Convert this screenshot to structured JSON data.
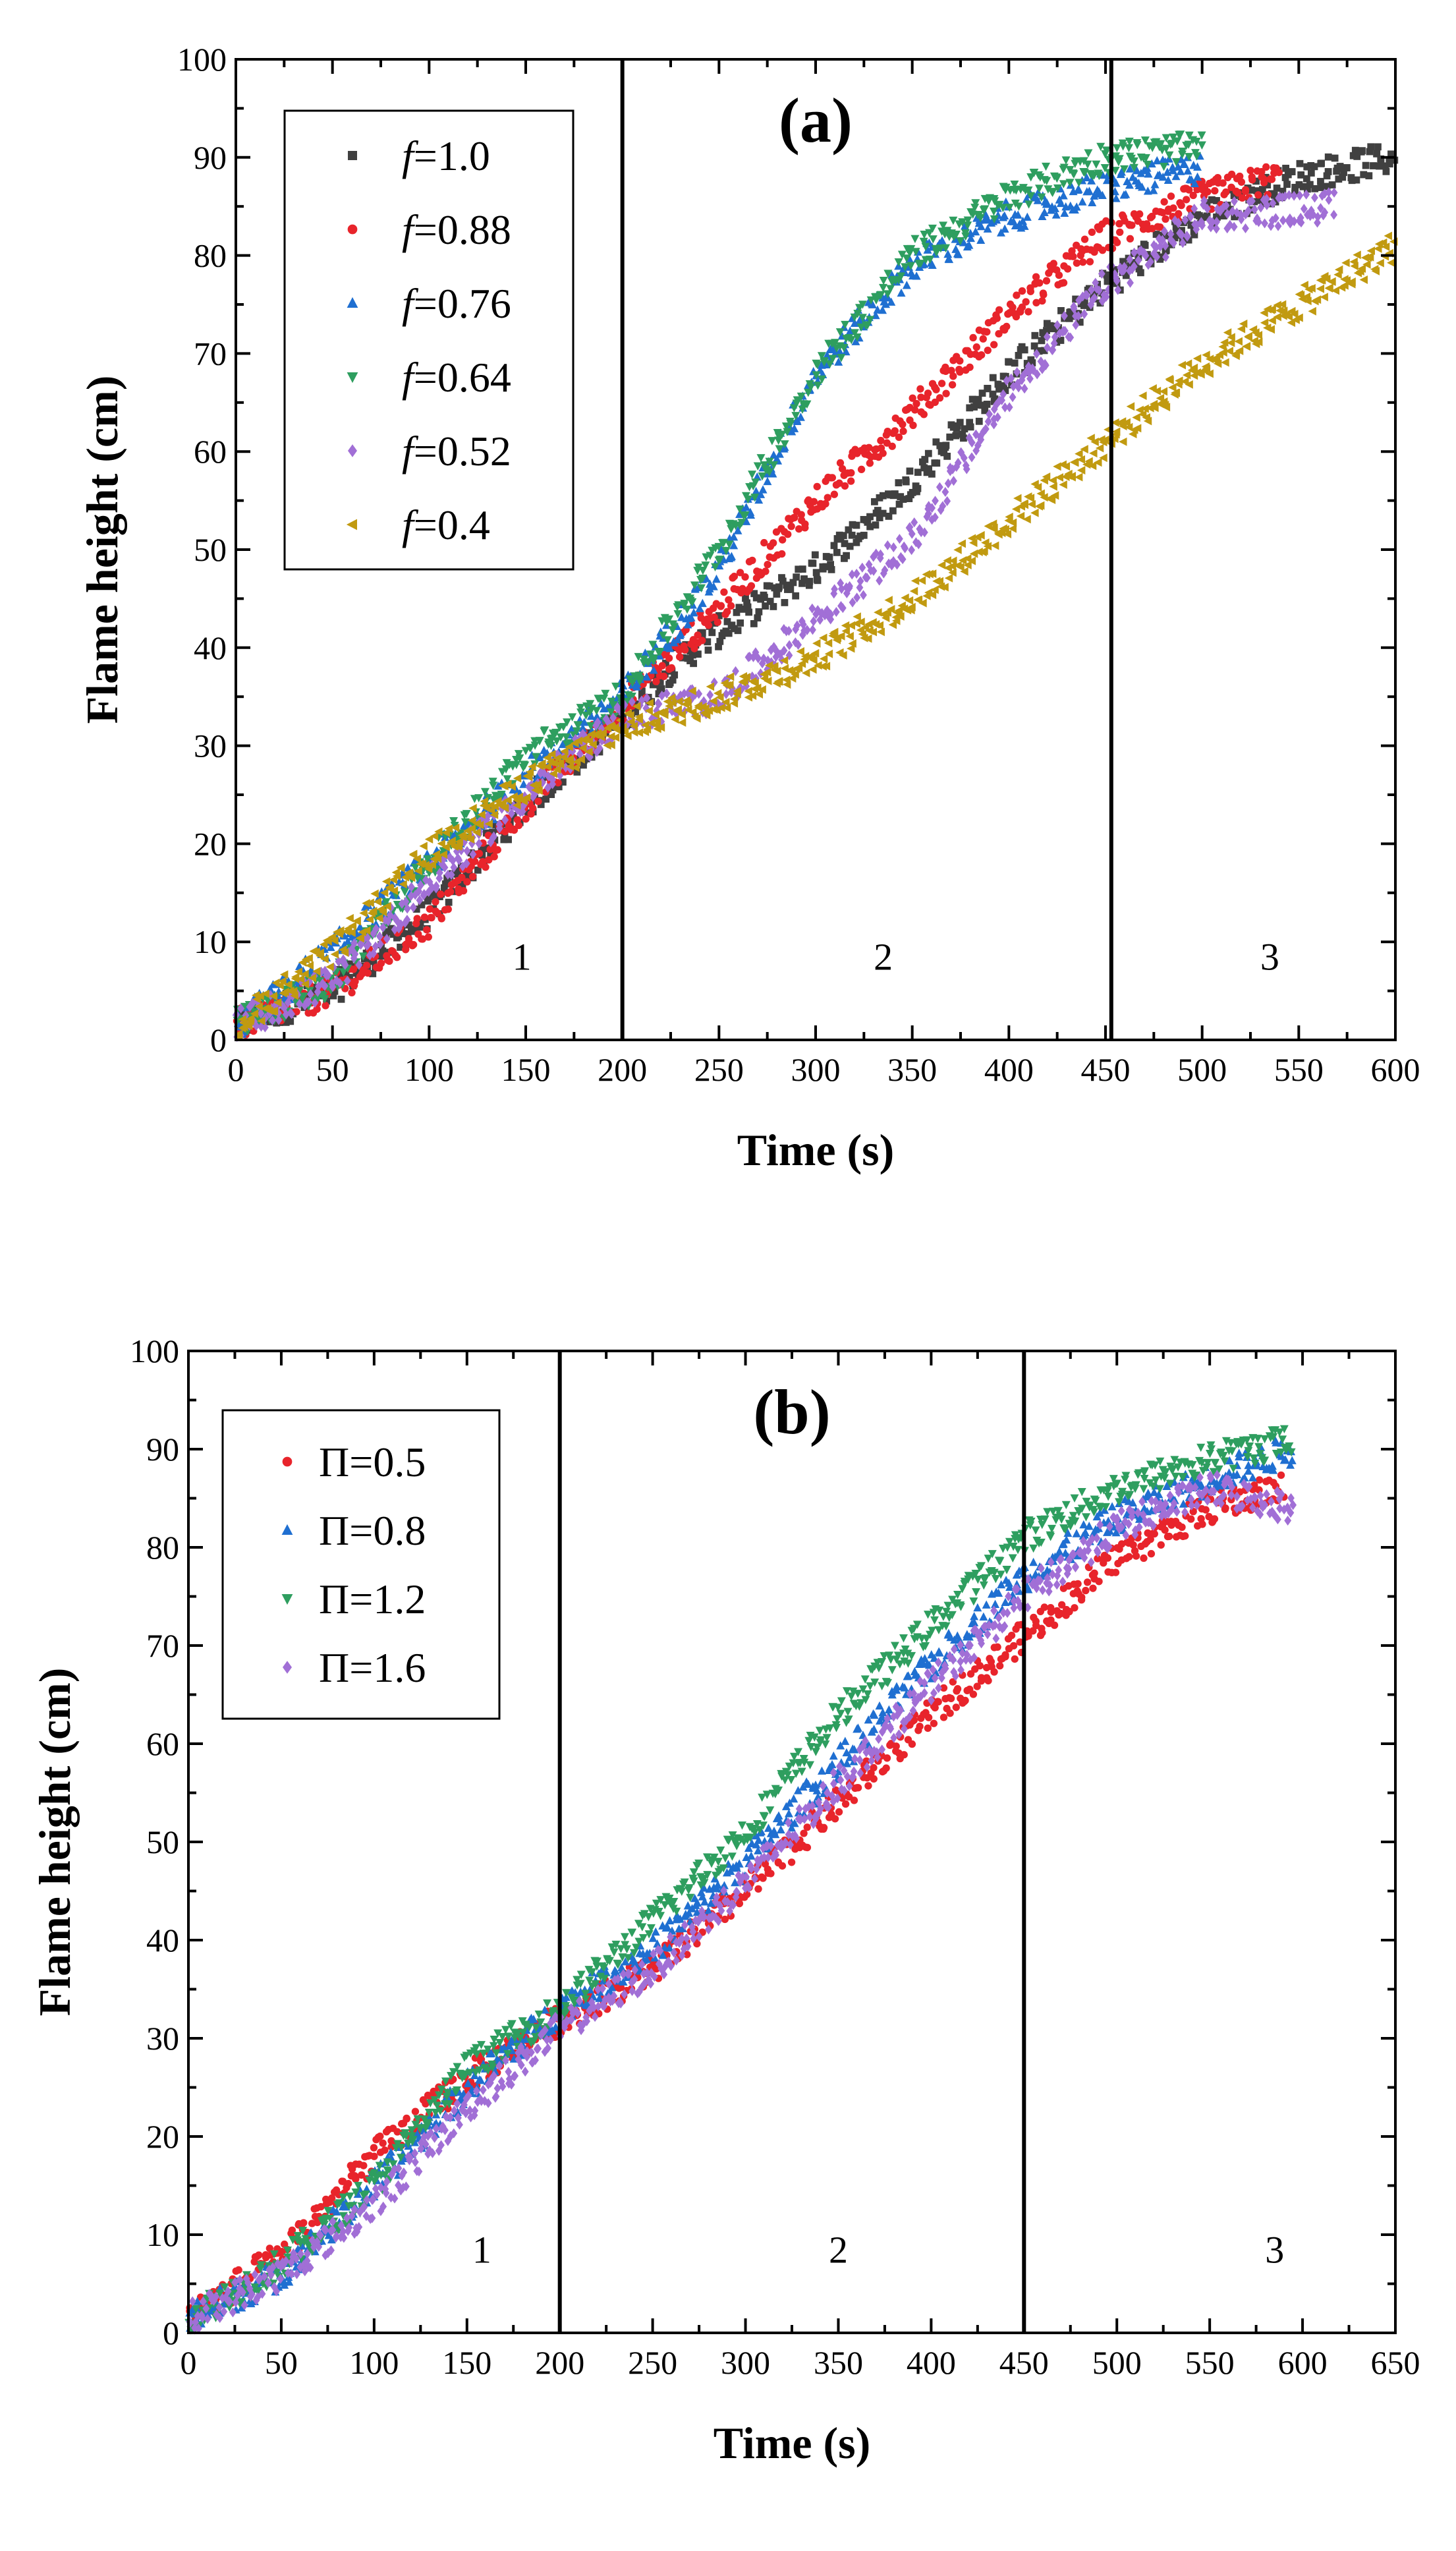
{
  "chart_data": [
    {
      "type": "scatter",
      "panel_label": "(a)",
      "xlabel": "Time (s)",
      "ylabel": "Flame height (cm)",
      "xlim": [
        0,
        600
      ],
      "ylim": [
        0,
        100
      ],
      "xticks": [
        0,
        50,
        100,
        150,
        200,
        250,
        300,
        350,
        400,
        450,
        500,
        550,
        600
      ],
      "yticks": [
        0,
        10,
        20,
        30,
        40,
        50,
        60,
        70,
        80,
        90,
        100
      ],
      "dividers": [
        200,
        453
      ],
      "regions": [
        {
          "label": "1",
          "x": 148,
          "y": 8.5
        },
        {
          "label": "2",
          "x": 335,
          "y": 8.5
        },
        {
          "label": "3",
          "x": 535,
          "y": 8.5
        }
      ],
      "legend_position": "top-left",
      "series": [
        {
          "symbol": "f",
          "value": "=1.0",
          "color": "#404040",
          "marker": "square",
          "x": [
            0,
            50,
            100,
            150,
            200,
            230,
            260,
            300,
            350,
            400,
            450,
            500,
            550,
            600
          ],
          "y": [
            1.5,
            5,
            13,
            24,
            33,
            39,
            43,
            48,
            57,
            68,
            77,
            84,
            88,
            90
          ]
        },
        {
          "symbol": "f",
          "value": "=0.88",
          "color": "#e8242b",
          "marker": "circle",
          "x": [
            0,
            50,
            100,
            150,
            200,
            250,
            300,
            350,
            400,
            450,
            500,
            540
          ],
          "y": [
            1.5,
            5,
            12,
            24,
            34,
            44,
            55,
            64,
            74,
            82,
            86,
            88
          ]
        },
        {
          "symbol": "f",
          "value": "=0.76",
          "color": "#1f6fd1",
          "marker": "triangle-up",
          "x": [
            0,
            25,
            50,
            100,
            150,
            200,
            250,
            300,
            350,
            400,
            450,
            500
          ],
          "y": [
            1.5,
            5,
            9,
            18,
            27,
            35,
            48,
            68,
            79,
            84,
            87,
            89
          ]
        },
        {
          "symbol": "f",
          "value": "=0.64",
          "color": "#2e9e5f",
          "marker": "triangle-down",
          "x": [
            0,
            50,
            100,
            150,
            200,
            250,
            300,
            350,
            400,
            450,
            500
          ],
          "y": [
            1.5,
            6,
            18,
            29,
            35,
            50,
            68,
            80,
            86,
            90,
            91
          ]
        },
        {
          "symbol": "f",
          "value": "=0.52",
          "color": "#a16fd6",
          "marker": "diamond",
          "x": [
            0,
            50,
            100,
            150,
            200,
            250,
            300,
            350,
            400,
            450,
            500,
            570
          ],
          "y": [
            1.5,
            6,
            16,
            25,
            33,
            35,
            43,
            51,
            66,
            77,
            84,
            85
          ]
        },
        {
          "symbol": "f",
          "value": "=0.4",
          "color": "#c19a10",
          "marker": "triangle-left",
          "x": [
            0,
            50,
            100,
            150,
            200,
            250,
            300,
            350,
            400,
            450,
            500,
            550,
            600
          ],
          "y": [
            1.5,
            9,
            19,
            26,
            32,
            35,
            39,
            45,
            53,
            61,
            69,
            75,
            81
          ]
        }
      ]
    },
    {
      "type": "scatter",
      "panel_label": "(b)",
      "xlabel": "Time (s)",
      "ylabel": "Flame height (cm)",
      "xlim": [
        0,
        650
      ],
      "ylim": [
        0,
        100
      ],
      "xticks": [
        0,
        50,
        100,
        150,
        200,
        250,
        300,
        350,
        400,
        450,
        500,
        550,
        600,
        650
      ],
      "yticks": [
        0,
        10,
        20,
        30,
        40,
        50,
        60,
        70,
        80,
        90,
        100
      ],
      "dividers": [
        200,
        450
      ],
      "regions": [
        {
          "label": "1",
          "x": 158,
          "y": 8.5
        },
        {
          "label": "2",
          "x": 350,
          "y": 8.5
        },
        {
          "label": "3",
          "x": 585,
          "y": 8.5
        }
      ],
      "legend_position": "top-left",
      "series": [
        {
          "symbol": "Π",
          "value": "=0.5",
          "color": "#e8242b",
          "marker": "circle",
          "x": [
            0,
            50,
            100,
            150,
            200,
            250,
            300,
            350,
            400,
            450,
            500,
            550,
            590
          ],
          "y": [
            1.5,
            8,
            18,
            26,
            32,
            37,
            45,
            54,
            63,
            71,
            79,
            84,
            86
          ]
        },
        {
          "symbol": "Π",
          "value": "=0.8",
          "color": "#1f6fd1",
          "marker": "triangle-up",
          "x": [
            0,
            50,
            100,
            150,
            200,
            250,
            300,
            350,
            400,
            450,
            500,
            550,
            595
          ],
          "y": [
            1.5,
            6,
            15,
            25,
            33,
            39,
            48,
            58,
            68,
            77,
            83,
            87,
            90
          ]
        },
        {
          "symbol": "Π",
          "value": "=1.2",
          "color": "#2e9e5f",
          "marker": "triangle-down",
          "x": [
            0,
            50,
            100,
            150,
            200,
            250,
            300,
            350,
            400,
            450,
            500,
            550,
            595
          ],
          "y": [
            1.5,
            7,
            15,
            27,
            33,
            42,
            51,
            63,
            72,
            81,
            86,
            89,
            91
          ]
        },
        {
          "symbol": "Π",
          "value": "=1.6",
          "color": "#a16fd6",
          "marker": "diamond",
          "x": [
            0,
            50,
            100,
            150,
            200,
            250,
            300,
            350,
            400,
            450,
            500,
            550,
            595
          ],
          "y": [
            1.5,
            6,
            13,
            23,
            31,
            37,
            46,
            56,
            66,
            75,
            82,
            86,
            84
          ]
        }
      ]
    }
  ]
}
